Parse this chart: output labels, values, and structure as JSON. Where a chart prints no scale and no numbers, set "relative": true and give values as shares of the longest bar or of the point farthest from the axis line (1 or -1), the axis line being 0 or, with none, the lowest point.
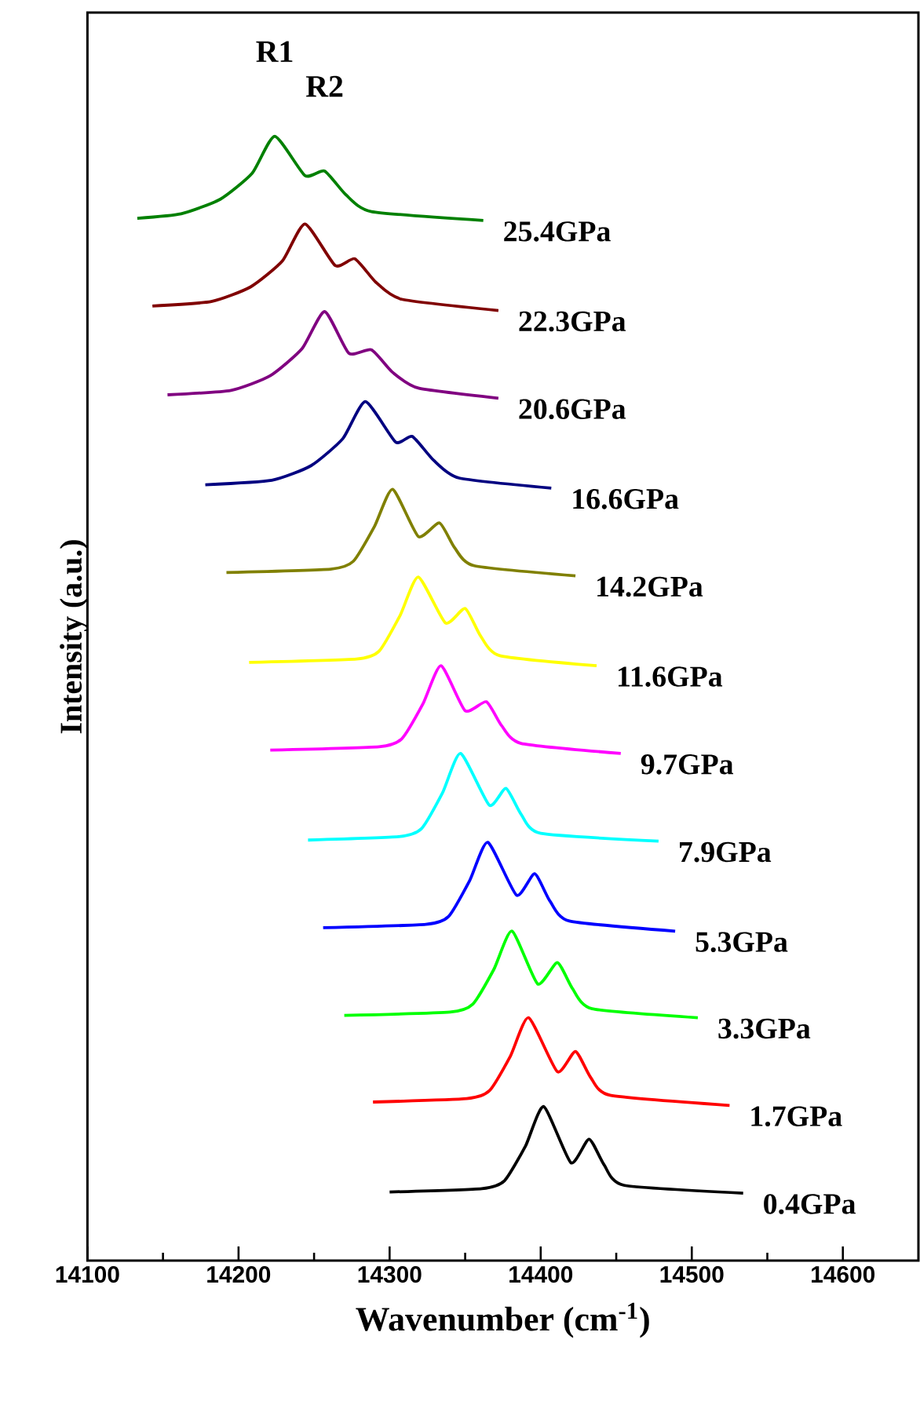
{
  "chart_data": {
    "type": "line",
    "relative": true,
    "xlabel": "Wavenumber (cm$^{-1}$)",
    "ylabel": "Intensity (a.u.)",
    "xlim": [
      14100,
      14650
    ],
    "xticks": [
      14100,
      14200,
      14300,
      14400,
      14500,
      14600
    ],
    "annotations": [
      {
        "text": "R1",
        "x": 14224,
        "y": 1.0
      },
      {
        "text": "R2",
        "x": 14257,
        "y": 0.969
      }
    ],
    "series": [
      {
        "name": "0.4GPa",
        "color": "#000000",
        "x": [
          14300,
          14361,
          14376,
          14390,
          14402,
          14420,
          14432,
          14442,
          14455,
          14534
        ],
        "values": [
          0.061,
          0.064,
          0.071,
          0.102,
          0.137,
          0.087,
          0.108,
          0.085,
          0.067,
          0.06
        ]
      },
      {
        "name": "1.7GPa",
        "color": "#ff0000",
        "x": [
          14289,
          14351,
          14366,
          14380,
          14392,
          14411,
          14423,
          14433,
          14446,
          14525
        ],
        "values": [
          0.141,
          0.144,
          0.151,
          0.182,
          0.216,
          0.168,
          0.186,
          0.163,
          0.147,
          0.138
        ]
      },
      {
        "name": "3.3GPa",
        "color": "#00ff00",
        "x": [
          14270,
          14340,
          14355,
          14369,
          14381,
          14398,
          14411,
          14421,
          14434,
          14504
        ],
        "values": [
          0.218,
          0.221,
          0.228,
          0.259,
          0.293,
          0.246,
          0.265,
          0.242,
          0.224,
          0.216
        ]
      },
      {
        "name": "5.3GPa",
        "color": "#0000ff",
        "x": [
          14256,
          14324,
          14339,
          14353,
          14365,
          14384,
          14396,
          14406,
          14419,
          14489
        ],
        "values": [
          0.296,
          0.299,
          0.306,
          0.338,
          0.372,
          0.325,
          0.344,
          0.32,
          0.302,
          0.293
        ]
      },
      {
        "name": "7.9GPa",
        "color": "#00ffff",
        "x": [
          14246,
          14306,
          14321,
          14335,
          14347,
          14366,
          14377,
          14387,
          14400,
          14478
        ],
        "values": [
          0.374,
          0.377,
          0.384,
          0.416,
          0.451,
          0.405,
          0.42,
          0.397,
          0.38,
          0.373
        ]
      },
      {
        "name": "9.7GPa",
        "color": "#ff00ff",
        "x": [
          14221,
          14293,
          14308,
          14322,
          14334,
          14350,
          14364,
          14374,
          14387,
          14453
        ],
        "values": [
          0.454,
          0.457,
          0.464,
          0.495,
          0.529,
          0.489,
          0.497,
          0.476,
          0.46,
          0.451
        ]
      },
      {
        "name": "11.6GPa",
        "color": "#ffff00",
        "x": [
          14207,
          14278,
          14293,
          14307,
          14319,
          14337,
          14350,
          14360,
          14373,
          14437
        ],
        "values": [
          0.532,
          0.535,
          0.542,
          0.574,
          0.608,
          0.567,
          0.58,
          0.556,
          0.538,
          0.529
        ]
      },
      {
        "name": "14.2GPa",
        "color": "#808000",
        "x": [
          14192,
          14261,
          14276,
          14290,
          14302,
          14319,
          14333,
          14343,
          14356,
          14423
        ],
        "values": [
          0.612,
          0.615,
          0.622,
          0.653,
          0.686,
          0.644,
          0.656,
          0.634,
          0.618,
          0.609
        ]
      },
      {
        "name": "16.6GPa",
        "color": "#000080",
        "x": [
          14178,
          14222,
          14248,
          14269,
          14284,
          14304,
          14315,
          14329,
          14346,
          14407
        ],
        "values": [
          0.69,
          0.694,
          0.707,
          0.731,
          0.764,
          0.728,
          0.733,
          0.712,
          0.696,
          0.687
        ]
      },
      {
        "name": "20.6GPa",
        "color": "#800080",
        "x": [
          14153,
          14195,
          14221,
          14242,
          14257,
          14273,
          14288,
          14302,
          14319,
          14372
        ],
        "values": [
          0.77,
          0.774,
          0.787,
          0.811,
          0.844,
          0.807,
          0.81,
          0.79,
          0.776,
          0.767
        ]
      },
      {
        "name": "22.3GPa",
        "color": "#800000",
        "x": [
          14143,
          14182,
          14208,
          14229,
          14244,
          14264,
          14277,
          14291,
          14308,
          14372
        ],
        "values": [
          0.849,
          0.853,
          0.866,
          0.889,
          0.922,
          0.885,
          0.891,
          0.87,
          0.855,
          0.845
        ]
      },
      {
        "name": "25.4GPa",
        "color": "#008000",
        "x": [
          14133,
          14162,
          14188,
          14209,
          14224,
          14244,
          14257,
          14271,
          14288,
          14362
        ],
        "values": [
          0.927,
          0.931,
          0.944,
          0.967,
          1.0,
          0.965,
          0.969,
          0.948,
          0.933,
          0.925
        ]
      }
    ]
  }
}
